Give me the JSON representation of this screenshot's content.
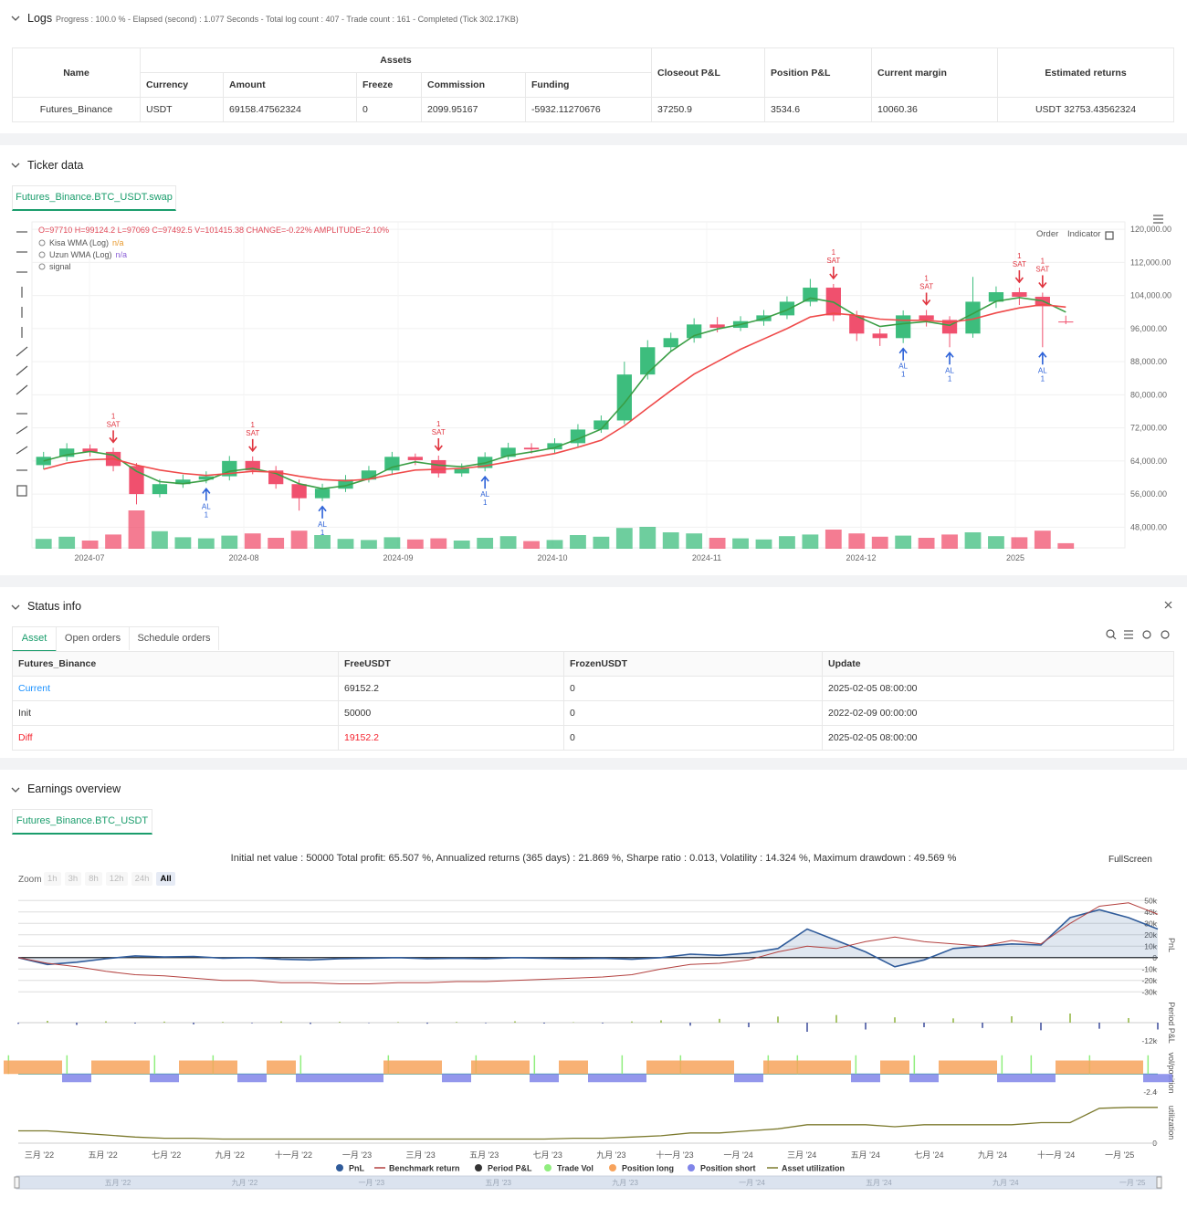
{
  "logs": {
    "title": "Logs",
    "status": "Progress : 100.0 % - Elapsed (second) : 1.077 Seconds - Total log count : 407 - Trade count : 161 - Completed (Tick 302.17KB)",
    "table": {
      "headers": [
        "Name",
        "Assets",
        "Closeout P&L",
        "Position P&L",
        "Current margin",
        "Estimated returns"
      ],
      "subheaders": [
        "Currency",
        "Amount",
        "Freeze",
        "Commission",
        "Funding"
      ],
      "rows": [
        [
          "Futures_Binance",
          "USDT",
          69158.47562324,
          0,
          2099.95167,
          -5932.11270676,
          37250.9,
          3534.6,
          10060.36,
          "USDT 32753.43562324"
        ]
      ]
    }
  },
  "ticker": {
    "title": "Ticker data",
    "tab": "Futures_Binance.BTC_USDT.swap",
    "buttons": [
      "Order",
      "Indicator"
    ]
  },
  "status": {
    "title": "Status info",
    "tabs": [
      "Asset",
      "Open orders",
      "Schedule orders"
    ],
    "table": {
      "headers": [
        "Futures_Binance",
        "FreeUSDT",
        "FrozenUSDT",
        "Update"
      ],
      "rows": [
        [
          "Current",
          69152.2,
          0,
          "2025-02-05 08:00:00"
        ],
        [
          "Init",
          50000,
          0,
          "2022-02-09 00:00:00"
        ],
        [
          "Diff",
          19152.2,
          0,
          "2025-02-05 08:00:00"
        ]
      ]
    }
  },
  "earnings": {
    "title": "Earnings overview",
    "tab": "Futures_Binance.BTC_USDT",
    "fullscreen": "FullScreen",
    "zoom_label": "Zoom",
    "zoom": [
      "1h",
      "3h",
      "8h",
      "12h",
      "24h",
      "All"
    ],
    "navigator": [
      "五月 '22",
      "九月 '22",
      "一月 '23",
      "五月 '23",
      "九月 '23",
      "一月 '24",
      "五月 '24",
      "九月 '24",
      "一月 '25"
    ]
  },
  "chart_data": [
    {
      "type": "candlestick",
      "info": "O=97710 H=99124.2 L=97069 C=97492.5 V=101415.38 CHANGE=-0.22% AMPLITUDE=2.10%",
      "up_color": "#3dbd7d",
      "down_color": "#f0506e",
      "ylim": [
        43000,
        121800
      ],
      "yticks": [
        {
          "value": 120000,
          "label": "120,000.00"
        },
        {
          "value": 112000,
          "label": "112,000.00"
        },
        {
          "value": 104000,
          "label": "104,000.00"
        },
        {
          "value": 96000,
          "label": "96,000.00"
        },
        {
          "value": 88000,
          "label": "88,000.00"
        },
        {
          "value": 80000,
          "label": "80,000.00"
        },
        {
          "value": 72000,
          "label": "72,000.00"
        },
        {
          "value": 64000,
          "label": "64,000.00"
        },
        {
          "value": 56000,
          "label": "56,000.00"
        },
        {
          "value": 48000,
          "label": "48,000.00"
        }
      ],
      "xticks": [
        "2024-07",
        "2024-08",
        "2024-09",
        "2024-10",
        "2024-11",
        "2024-12",
        "2025"
      ],
      "grid": true,
      "open": [
        63000,
        65000,
        67000,
        66200,
        62800,
        56000,
        58400,
        59500,
        60300,
        64000,
        61700,
        58400,
        55000,
        57300,
        59500,
        61700,
        65000,
        64200,
        61000,
        62300,
        65000,
        67200,
        66800,
        68300,
        71600,
        73800,
        84900,
        91500,
        93700,
        97000,
        96200,
        97800,
        99200,
        102500,
        105900,
        99200,
        94800,
        93700,
        99200,
        98100,
        94800,
        102500,
        104800,
        103700,
        97710
      ],
      "high": [
        66200,
        68300,
        68000,
        67200,
        63500,
        59600,
        60700,
        61500,
        65200,
        65100,
        62800,
        59500,
        58500,
        60600,
        62800,
        66200,
        65800,
        65300,
        63400,
        66100,
        68400,
        68300,
        69500,
        72900,
        75000,
        88000,
        93200,
        95000,
        98500,
        98800,
        99000,
        100500,
        103800,
        108000,
        106800,
        100300,
        96000,
        100400,
        100500,
        99000,
        108500,
        106200,
        105900,
        104700,
        99124.2
      ],
      "low": [
        62000,
        64000,
        65100,
        61500,
        53500,
        55200,
        57500,
        58600,
        59300,
        60800,
        57300,
        52000,
        54300,
        56500,
        58800,
        60600,
        63000,
        60000,
        60200,
        61500,
        64300,
        65800,
        65900,
        67500,
        70800,
        72900,
        83700,
        90500,
        92600,
        95100,
        95400,
        96700,
        98300,
        101400,
        97800,
        93000,
        91800,
        92500,
        96500,
        91500,
        93800,
        101000,
        101700,
        91500,
        97069
      ],
      "close": [
        65000,
        67000,
        66200,
        62800,
        56000,
        58400,
        59500,
        60300,
        64000,
        61700,
        58400,
        55000,
        57300,
        59500,
        61700,
        65000,
        64200,
        61000,
        62300,
        65000,
        67200,
        66800,
        68300,
        71600,
        73800,
        84900,
        91500,
        93700,
        97000,
        96200,
        97800,
        99200,
        102500,
        105900,
        99200,
        94800,
        93700,
        99200,
        98100,
        94800,
        102500,
        104800,
        103700,
        101400,
        97492.5
      ],
      "volume": [
        180000,
        220000,
        150000,
        260000,
        700000,
        320000,
        210000,
        190000,
        240000,
        280000,
        200000,
        330000,
        250000,
        180000,
        160000,
        210000,
        170000,
        190000,
        150000,
        200000,
        230000,
        140000,
        160000,
        250000,
        220000,
        380000,
        400000,
        300000,
        280000,
        200000,
        190000,
        170000,
        230000,
        260000,
        350000,
        280000,
        220000,
        240000,
        200000,
        260000,
        300000,
        230000,
        210000,
        330000,
        101415.38
      ],
      "series": [
        {
          "name": "Kisa WMA (Log)",
          "legend_value": "n/a",
          "color": "#3a9e45",
          "values": [
            64000,
            65500,
            66300,
            65400,
            61500,
            59000,
            58500,
            59300,
            61500,
            62200,
            61000,
            58500,
            57300,
            58000,
            59700,
            62500,
            63800,
            63000,
            62600,
            63500,
            65300,
            66200,
            67200,
            69300,
            71700,
            78000,
            85300,
            90500,
            94300,
            95900,
            97000,
            98400,
            100500,
            103400,
            102400,
            99000,
            96500,
            97200,
            97700,
            96800,
            99600,
            102600,
            103500,
            102700,
            100000
          ]
        },
        {
          "name": "Uzun WMA (Log)",
          "legend_value": "n/a",
          "color": "#ef4a4a",
          "values": [
            62000,
            63500,
            64300,
            64500,
            63000,
            61800,
            61000,
            60500,
            61000,
            61500,
            61300,
            60300,
            59500,
            59200,
            59600,
            60800,
            61800,
            62000,
            62200,
            62800,
            63800,
            64800,
            65800,
            67300,
            69000,
            72500,
            76800,
            81000,
            85000,
            88000,
            91000,
            93500,
            96000,
            98800,
            99700,
            99200,
            98300,
            98000,
            98000,
            97500,
            98300,
            99800,
            101000,
            101800,
            101200
          ]
        }
      ],
      "signal_legend": "signal",
      "signals": [
        {
          "label": "SAT",
          "amount": 1,
          "candle": 3
        },
        {
          "label": "AL",
          "amount": 1,
          "candle": 7
        },
        {
          "label": "SAT",
          "amount": 1,
          "candle": 9
        },
        {
          "label": "AL",
          "amount": 1,
          "candle": 12
        },
        {
          "label": "SAT",
          "amount": 1,
          "candle": 17
        },
        {
          "label": "AL",
          "amount": 1,
          "candle": 19
        },
        {
          "label": "SAT",
          "amount": 1,
          "candle": 34
        },
        {
          "label": "AL",
          "amount": 1,
          "candle": 37
        },
        {
          "label": "SAT",
          "amount": 1,
          "candle": 38
        },
        {
          "label": "AL",
          "amount": 1,
          "candle": 39
        },
        {
          "label": "SAT",
          "amount": 1,
          "candle": 42
        },
        {
          "label": "SAT",
          "amount": 1,
          "candle": 43
        },
        {
          "label": "AL",
          "amount": 1,
          "candle": 43
        }
      ]
    },
    {
      "type": "line",
      "title": "Initial net value : 50000 Total profit: 65.507 %, Annualized returns (365 days) : 21.869 %, Sharpe ratio : 0.013, Volatility : 14.324 %, Maximum drawdown : 49.569 %",
      "ylabel": "PnL",
      "ylim": [
        -33000,
        55000
      ],
      "yticks": [
        {
          "value": 50000,
          "label": "50k"
        },
        {
          "value": 40000,
          "label": "40k"
        },
        {
          "value": 30000,
          "label": "30k"
        },
        {
          "value": 20000,
          "label": "20k"
        },
        {
          "value": 10000,
          "label": "10k"
        },
        0,
        {
          "value": -10000,
          "label": "-10k"
        },
        {
          "value": -20000,
          "label": "-20k"
        },
        {
          "value": -30000,
          "label": "-30k"
        }
      ],
      "xticks": [
        "三月 '22",
        "五月 '22",
        "七月 '22",
        "九月 '22",
        "十一月 '22",
        "一月 '23",
        "三月 '23",
        "五月 '23",
        "七月 '23",
        "九月 '23",
        "十一月 '23",
        "一月 '24",
        "三月 '24",
        "五月 '24",
        "七月 '24",
        "九月 '24",
        "十一月 '24",
        "一月 '25"
      ],
      "period_ylabel": "Period P&L",
      "period_ylim": [
        -15000,
        15000
      ],
      "period_yticks": [
        {
          "value": -12000,
          "label": "-12k"
        }
      ],
      "position_ylabel": "vol/position",
      "position_ylim": [
        -2.9,
        3.2
      ],
      "position_yticks": [
        -2.4
      ],
      "utilization_ylabel": "utilization",
      "utilization_ylim": [
        0,
        1
      ],
      "utilization_yticks": [
        0
      ],
      "series": [
        {
          "name": "PnL",
          "color": "#2f5b9a",
          "legend_marker": "circle",
          "panel": "main",
          "values": [
            0,
            -6000,
            -4000,
            -1000,
            1500,
            500,
            1000,
            -500,
            0,
            -1500,
            -2000,
            -1000,
            -500,
            0,
            -1000,
            -500,
            -1000,
            0,
            -500,
            -1000,
            -500,
            -1500,
            0,
            3000,
            2000,
            4000,
            8000,
            25000,
            15000,
            5000,
            -8000,
            -2000,
            8000,
            10000,
            12000,
            11000,
            35000,
            42000,
            35000,
            25000
          ]
        },
        {
          "name": "Benchmark return",
          "color": "#b3413f",
          "legend_marker": "line",
          "panel": "main",
          "values": [
            0,
            -5000,
            -8000,
            -12000,
            -15000,
            -16000,
            -18000,
            -20000,
            -20000,
            -22000,
            -22000,
            -23000,
            -23000,
            -22000,
            -22000,
            -21000,
            -21000,
            -20000,
            -19000,
            -18000,
            -17000,
            -15000,
            -10000,
            -6000,
            -5000,
            -2000,
            5000,
            10000,
            8000,
            14000,
            18000,
            14000,
            12000,
            10000,
            15000,
            12000,
            30000,
            45000,
            48000,
            38000
          ]
        },
        {
          "name": "Period P&L",
          "color": "#333333",
          "up_color": "#8db33a",
          "down_color": "#3a4a9a",
          "legend_marker": "circle",
          "panel": "period",
          "values": [
            -800,
            1200,
            -1500,
            900,
            -600,
            700,
            -1100,
            500,
            -400,
            800,
            -900,
            600,
            -300,
            400,
            -700,
            500,
            -400,
            900,
            -600,
            300,
            -500,
            800,
            1500,
            -2000,
            2500,
            -3000,
            4000,
            -6000,
            5000,
            -4500,
            3500,
            -3000,
            2800,
            -3500,
            4200,
            -5000,
            6000,
            -4000,
            3000,
            -4500
          ]
        },
        {
          "name": "Trade Vol",
          "color": "#90ee7e",
          "legend_marker": "circle",
          "panel": "position",
          "values": [
            2.5,
            0,
            2.5,
            0,
            0,
            2.5,
            0,
            2.5,
            0,
            0,
            2.5,
            0,
            0,
            2.5,
            0,
            0,
            2.5,
            0,
            2.5,
            0,
            0,
            2.5,
            0,
            2.5,
            0,
            0,
            2.5,
            2.5,
            0,
            2.5,
            0,
            2.5,
            0,
            0,
            2.5,
            2.5,
            0,
            2.5,
            0,
            2.5
          ]
        },
        {
          "name": "Position long",
          "color": "#f7a35c",
          "legend_marker": "circle",
          "panel": "position",
          "values": [
            1.8,
            1.8,
            0,
            1.8,
            1.8,
            0,
            1.8,
            1.8,
            0,
            1.8,
            0,
            0,
            0,
            1.8,
            1.8,
            0,
            1.8,
            1.8,
            0,
            1.8,
            0,
            0,
            1.8,
            1.8,
            1.8,
            0,
            1.8,
            1.8,
            1.8,
            0,
            1.8,
            0,
            1.8,
            1.8,
            0,
            0,
            1.8,
            1.8,
            1.8,
            0
          ]
        },
        {
          "name": "Position short",
          "color": "#8085e9",
          "legend_marker": "circle",
          "panel": "position",
          "values": [
            0,
            0,
            -1.1,
            0,
            0,
            -1.1,
            0,
            0,
            -1.1,
            0,
            -1.1,
            -1.1,
            -1.1,
            0,
            0,
            -1.1,
            0,
            0,
            -1.1,
            0,
            -1.1,
            -1.1,
            0,
            0,
            0,
            -1.1,
            0,
            0,
            0,
            -1.1,
            0,
            -1.1,
            0,
            0,
            -1.1,
            -1.1,
            0,
            0,
            0,
            -1.1
          ]
        },
        {
          "name": "Asset utilization",
          "color": "#7c7a2e",
          "legend_marker": "line",
          "panel": "utilization",
          "values": [
            0.3,
            0.3,
            0.25,
            0.2,
            0.15,
            0.12,
            0.12,
            0.1,
            0.1,
            0.1,
            0.1,
            0.1,
            0.1,
            0.1,
            0.1,
            0.1,
            0.1,
            0.1,
            0.1,
            0.12,
            0.12,
            0.15,
            0.18,
            0.25,
            0.25,
            0.3,
            0.35,
            0.45,
            0.45,
            0.45,
            0.4,
            0.45,
            0.45,
            0.45,
            0.45,
            0.5,
            0.5,
            0.85,
            0.87,
            0.87
          ]
        }
      ]
    }
  ]
}
